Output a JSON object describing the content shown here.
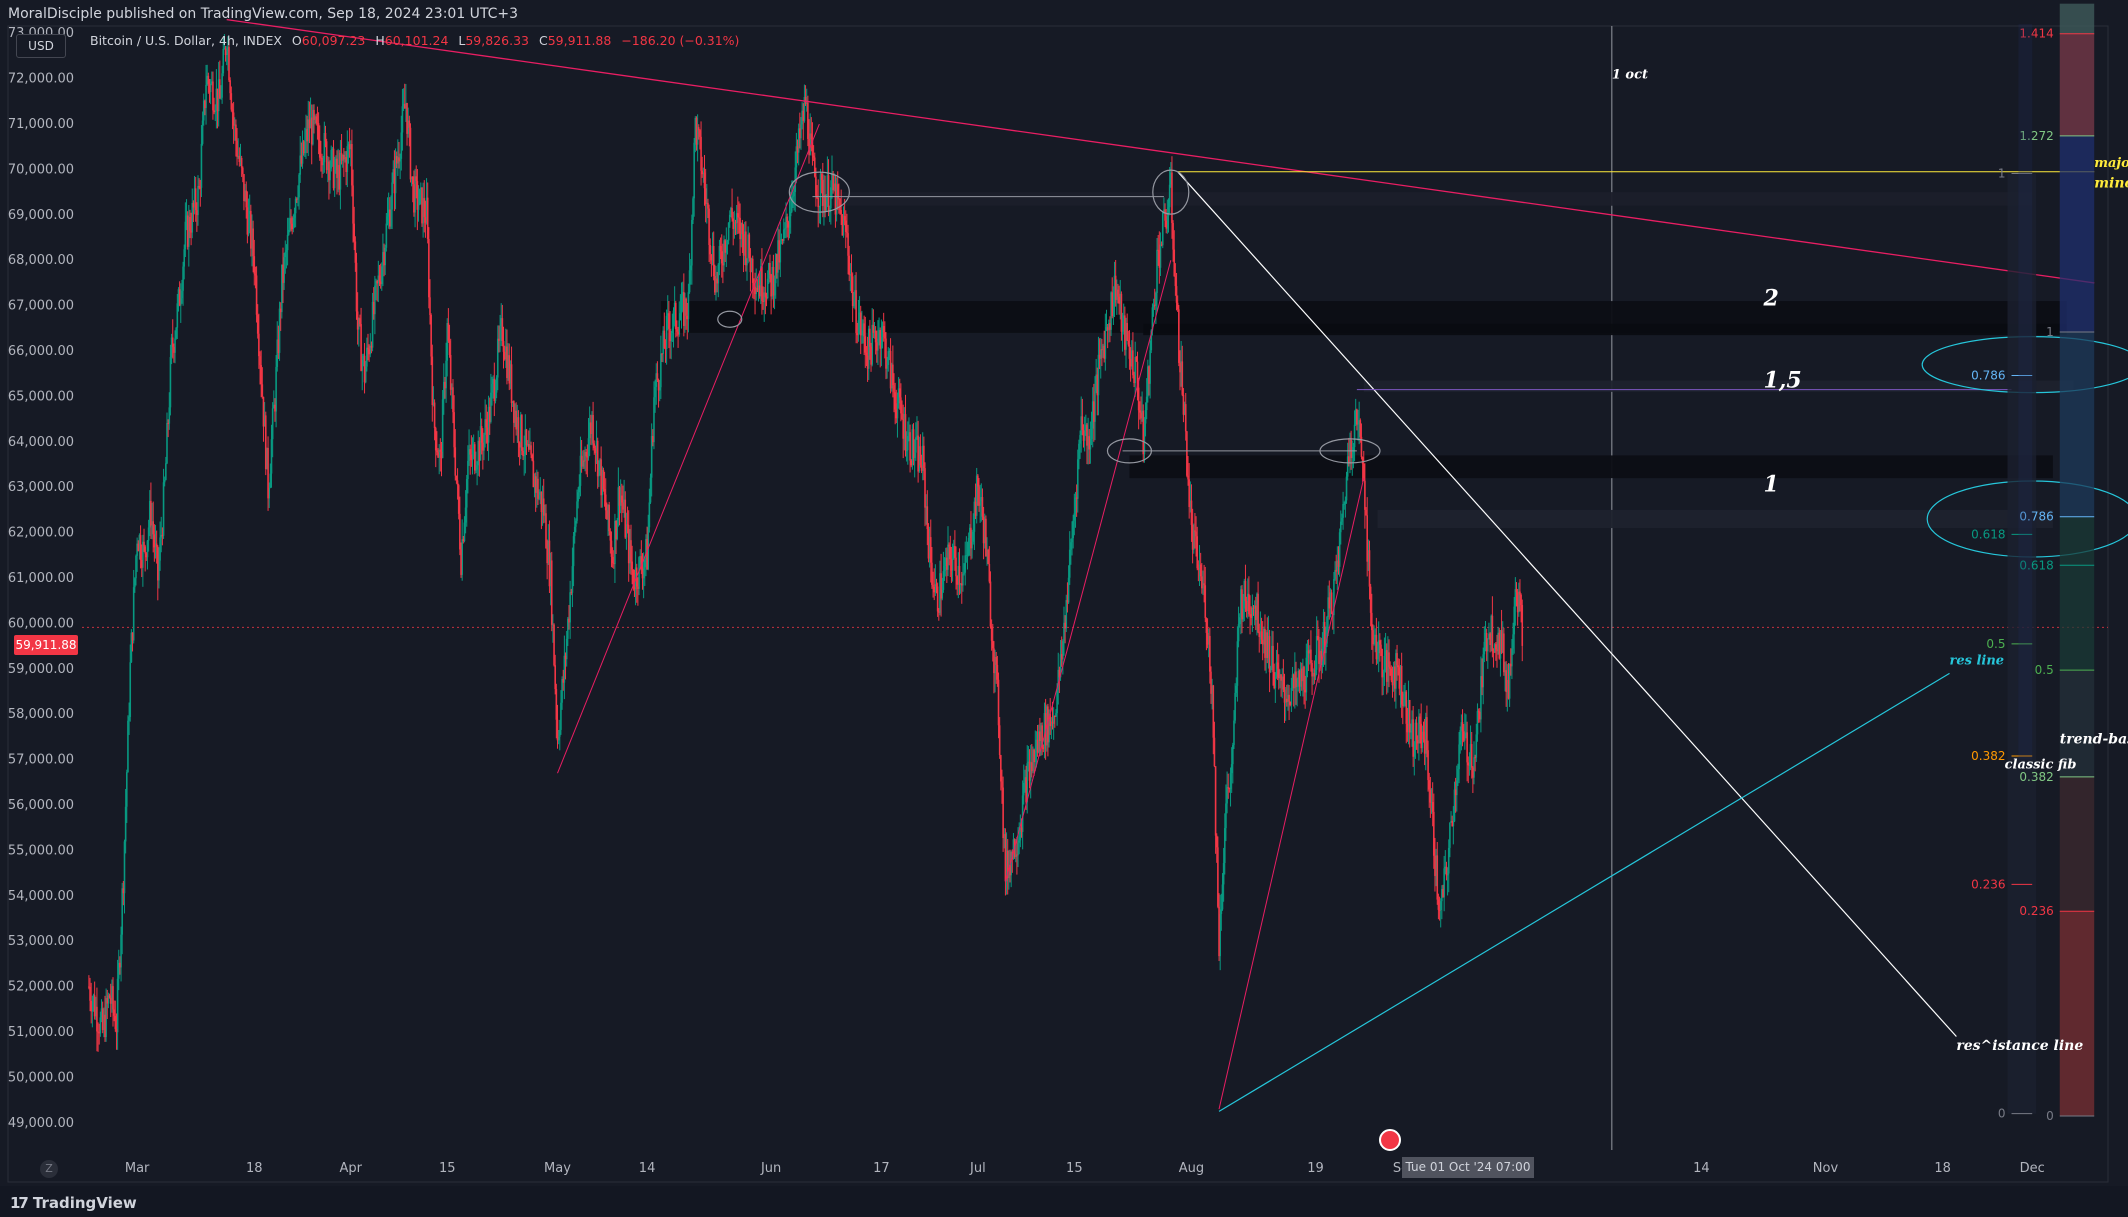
{
  "header": {
    "publisher": "MoralDisciple published on TradingView.com, Sep 18, 2024 23:01 UTC+3"
  },
  "toolbar": {
    "currency_button": "USD"
  },
  "legend": {
    "symbol": "Bitcoin / U.S. Dollar, 4h, INDEX",
    "o_key": "O",
    "o": "60,097.23",
    "h_key": "H",
    "h": "60,101.24",
    "l_key": "L",
    "l": "59,826.33",
    "c_key": "C",
    "c": "59,911.88",
    "change": "−186.20 (−0.31%)"
  },
  "last_price_tag": "59,911.88",
  "crosshair_date": "Tue 01 Oct '24   07:00",
  "footer": {
    "logo": "TradingView",
    "zoom": "Z"
  },
  "colors": {
    "background": "#161a25",
    "up": "#089981",
    "down": "#f23645",
    "trendline": "#e91e63",
    "fib_line": "#ffffff",
    "support_line": "#26c6da",
    "annotation_yellow": "#ffeb3b"
  },
  "chart_data": {
    "type": "candlestick",
    "symbol": "Bitcoin / U.S. Dollar",
    "interval": "4h",
    "last_price": 59911.88,
    "y_ticks": [
      49000,
      50000,
      51000,
      52000,
      53000,
      54000,
      55000,
      56000,
      57000,
      58000,
      59000,
      60000,
      61000,
      62000,
      63000,
      64000,
      65000,
      66000,
      67000,
      68000,
      69000,
      70000,
      71000,
      72000,
      73000
    ],
    "y_tick_labels": [
      "49,000.00",
      "50,000.00",
      "51,000.00",
      "52,000.00",
      "53,000.00",
      "54,000.00",
      "55,000.00",
      "56,000.00",
      "57,000.00",
      "58,000.00",
      "59,000.00",
      "60,000.00",
      "61,000.00",
      "62,000.00",
      "63,000.00",
      "64,000.00",
      "65,000.00",
      "66,000.00",
      "67,000.00",
      "68,000.00",
      "69,000.00",
      "70,000.00",
      "71,000.00",
      "72,000.00",
      "73,000.00"
    ],
    "ylim": [
      48400,
      73600
    ],
    "x_ticks": [
      {
        "date": "2024-03-01",
        "label": "Mar"
      },
      {
        "date": "2024-03-18",
        "label": "18"
      },
      {
        "date": "2024-04-01",
        "label": "Apr"
      },
      {
        "date": "2024-04-15",
        "label": "15"
      },
      {
        "date": "2024-05-01",
        "label": "May"
      },
      {
        "date": "2024-05-14",
        "label": "14"
      },
      {
        "date": "2024-06-01",
        "label": "Jun"
      },
      {
        "date": "2024-06-17",
        "label": "17"
      },
      {
        "date": "2024-07-01",
        "label": "Jul"
      },
      {
        "date": "2024-07-15",
        "label": "15"
      },
      {
        "date": "2024-08-01",
        "label": "Aug"
      },
      {
        "date": "2024-08-19",
        "label": "19"
      },
      {
        "date": "2024-09-01",
        "label": "Sep"
      },
      {
        "date": "2024-09-16",
        "label": "16"
      },
      {
        "date": "2024-10-14",
        "label": "14"
      },
      {
        "date": "2024-11-01",
        "label": "Nov"
      },
      {
        "date": "2024-11-18",
        "label": "18"
      },
      {
        "date": "2024-12-01",
        "label": "Dec"
      }
    ],
    "xlim": [
      "2024-02-22",
      "2024-12-12"
    ],
    "price_path": [
      [
        "2024-02-23",
        52000
      ],
      [
        "2024-02-24",
        51500
      ],
      [
        "2024-02-25",
        51000
      ],
      [
        "2024-02-26",
        51800
      ],
      [
        "2024-02-27",
        51200
      ],
      [
        "2024-02-28",
        54500
      ],
      [
        "2024-02-29",
        59000
      ],
      [
        "2024-03-01",
        62000
      ],
      [
        "2024-03-02",
        61500
      ],
      [
        "2024-03-03",
        62500
      ],
      [
        "2024-03-04",
        61000
      ],
      [
        "2024-03-05",
        63000
      ],
      [
        "2024-03-06",
        66000
      ],
      [
        "2024-03-07",
        67000
      ],
      [
        "2024-03-08",
        68500
      ],
      [
        "2024-03-10",
        69500
      ],
      [
        "2024-03-11",
        72000
      ],
      [
        "2024-03-13",
        71500
      ],
      [
        "2024-03-14",
        73000
      ],
      [
        "2024-03-15",
        71000
      ],
      [
        "2024-03-17",
        69000
      ],
      [
        "2024-03-18",
        68000
      ],
      [
        "2024-03-20",
        63000
      ],
      [
        "2024-03-21",
        65000
      ],
      [
        "2024-03-22",
        67500
      ],
      [
        "2024-03-24",
        69500
      ],
      [
        "2024-03-26",
        71000
      ],
      [
        "2024-03-28",
        70500
      ],
      [
        "2024-03-30",
        69800
      ],
      [
        "2024-04-01",
        70500
      ],
      [
        "2024-04-02",
        66500
      ],
      [
        "2024-04-03",
        65500
      ],
      [
        "2024-04-05",
        67500
      ],
      [
        "2024-04-07",
        69500
      ],
      [
        "2024-04-09",
        71500
      ],
      [
        "2024-04-10",
        69500
      ],
      [
        "2024-04-12",
        69000
      ],
      [
        "2024-04-13",
        64500
      ],
      [
        "2024-04-14",
        63500
      ],
      [
        "2024-04-15",
        66500
      ],
      [
        "2024-04-17",
        61500
      ],
      [
        "2024-04-18",
        63500
      ],
      [
        "2024-04-20",
        64000
      ],
      [
        "2024-04-21",
        64500
      ],
      [
        "2024-04-23",
        66500
      ],
      [
        "2024-04-25",
        64500
      ],
      [
        "2024-04-27",
        63500
      ],
      [
        "2024-04-29",
        62500
      ],
      [
        "2024-04-30",
        61000
      ],
      [
        "2024-05-01",
        57500
      ],
      [
        "2024-05-02",
        59000
      ],
      [
        "2024-05-04",
        63000
      ],
      [
        "2024-05-06",
        64500
      ],
      [
        "2024-05-07",
        63500
      ],
      [
        "2024-05-09",
        61500
      ],
      [
        "2024-05-10",
        63000
      ],
      [
        "2024-05-12",
        61000
      ],
      [
        "2024-05-14",
        61500
      ],
      [
        "2024-05-15",
        65000
      ],
      [
        "2024-05-17",
        66500
      ],
      [
        "2024-05-20",
        67000
      ],
      [
        "2024-05-21",
        71000
      ],
      [
        "2024-05-22",
        70000
      ],
      [
        "2024-05-24",
        67500
      ],
      [
        "2024-05-26",
        69000
      ],
      [
        "2024-05-28",
        68500
      ],
      [
        "2024-05-30",
        67500
      ],
      [
        "2024-06-01",
        67500
      ],
      [
        "2024-06-03",
        68500
      ],
      [
        "2024-06-05",
        70500
      ],
      [
        "2024-06-06",
        71500
      ],
      [
        "2024-06-07",
        70000
      ],
      [
        "2024-06-08",
        69500
      ],
      [
        "2024-06-10",
        69500
      ],
      [
        "2024-06-12",
        68500
      ],
      [
        "2024-06-13",
        67000
      ],
      [
        "2024-06-15",
        66000
      ],
      [
        "2024-06-17",
        66500
      ],
      [
        "2024-06-19",
        65000
      ],
      [
        "2024-06-21",
        64000
      ],
      [
        "2024-06-23",
        63500
      ],
      [
        "2024-06-24",
        61500
      ],
      [
        "2024-06-25",
        60500
      ],
      [
        "2024-06-27",
        61500
      ],
      [
        "2024-06-29",
        61000
      ],
      [
        "2024-07-01",
        63000
      ],
      [
        "2024-07-02",
        62000
      ],
      [
        "2024-07-04",
        58000
      ],
      [
        "2024-07-05",
        54500
      ],
      [
        "2024-07-07",
        55500
      ],
      [
        "2024-07-08",
        56500
      ],
      [
        "2024-07-10",
        57500
      ],
      [
        "2024-07-12",
        58000
      ],
      [
        "2024-07-13",
        59000
      ],
      [
        "2024-07-15",
        62500
      ],
      [
        "2024-07-16",
        64500
      ],
      [
        "2024-07-17",
        64000
      ],
      [
        "2024-07-19",
        66000
      ],
      [
        "2024-07-21",
        67500
      ],
      [
        "2024-07-22",
        66500
      ],
      [
        "2024-07-24",
        65500
      ],
      [
        "2024-07-25",
        64000
      ],
      [
        "2024-07-27",
        68000
      ],
      [
        "2024-07-29",
        69500
      ],
      [
        "2024-07-30",
        66500
      ],
      [
        "2024-07-31",
        64500
      ],
      [
        "2024-08-01",
        62000
      ],
      [
        "2024-08-03",
        60500
      ],
      [
        "2024-08-04",
        58500
      ],
      [
        "2024-08-05",
        53000
      ],
      [
        "2024-08-06",
        56000
      ],
      [
        "2024-08-07",
        57000
      ],
      [
        "2024-08-08",
        60500
      ],
      [
        "2024-08-10",
        60500
      ],
      [
        "2024-08-12",
        59500
      ],
      [
        "2024-08-14",
        58500
      ],
      [
        "2024-08-16",
        58500
      ],
      [
        "2024-08-18",
        59000
      ],
      [
        "2024-08-20",
        59500
      ],
      [
        "2024-08-22",
        61000
      ],
      [
        "2024-08-24",
        64000
      ],
      [
        "2024-08-25",
        64500
      ],
      [
        "2024-08-26",
        63500
      ],
      [
        "2024-08-27",
        60000
      ],
      [
        "2024-08-29",
        59000
      ],
      [
        "2024-08-31",
        59000
      ],
      [
        "2024-09-02",
        57500
      ],
      [
        "2024-09-04",
        57500
      ],
      [
        "2024-09-06",
        53500
      ],
      [
        "2024-09-07",
        54500
      ],
      [
        "2024-09-09",
        57500
      ],
      [
        "2024-09-11",
        57000
      ],
      [
        "2024-09-13",
        60000
      ],
      [
        "2024-09-15",
        59500
      ],
      [
        "2024-09-16",
        58500
      ],
      [
        "2024-09-17",
        61000
      ],
      [
        "2024-09-18",
        59911.88
      ]
    ],
    "y_axis_price_tag": "59,911.88",
    "annotations": {
      "texts": [
        {
          "text": "1 oct",
          "date": "2024-10-01",
          "price": 72000,
          "color": "#ffffff"
        },
        {
          "text": "2",
          "date": "2024-10-23",
          "price": 67000,
          "color": "#ffffff"
        },
        {
          "text": "1,5",
          "date": "2024-10-23",
          "price": 65200,
          "color": "#ffffff"
        },
        {
          "text": "1",
          "date": "2024-10-23",
          "price": 62900,
          "color": "#ffffff"
        },
        {
          "text": "res line",
          "date": "2024-11-19",
          "price": 59100,
          "color": "#26c6da"
        },
        {
          "text": "res^istance line",
          "date": "2024-11-20",
          "price": 50600,
          "color": "#ffffff"
        },
        {
          "text": "classic fib",
          "date": "2024-11-27",
          "price": 56800,
          "color": "#ffffff"
        },
        {
          "text": "trend-based fib",
          "date": "2024-12-05",
          "price": 57350,
          "color": "#ffffff"
        },
        {
          "text": "major sl",
          "date": "2024-12-10",
          "price": 70050,
          "color": "#ffeb3b"
        },
        {
          "text": "minor sl is pending",
          "date": "2024-12-10",
          "price": 69600,
          "color": "#ffeb3b"
        }
      ],
      "classic_fib": [
        {
          "label": "0",
          "price": 49200,
          "color": "#787b86"
        },
        {
          "label": "0.236",
          "price": 54250,
          "color": "#f23645"
        },
        {
          "label": "0.382",
          "price": 57080,
          "color": "#ff9800"
        },
        {
          "label": "0.5",
          "price": 59550,
          "color": "#4caf50"
        },
        {
          "label": "0.618",
          "price": 61960,
          "color": "#089981"
        },
        {
          "label": "0.786",
          "price": 65460,
          "color": "#64b5f6"
        },
        {
          "label": "1",
          "price": 69910,
          "color": "#787b86"
        }
      ],
      "trend_fib": [
        {
          "label": "0",
          "price": 49150,
          "color": "#787b86"
        },
        {
          "label": "0.236",
          "price": 53660,
          "color": "#f23645"
        },
        {
          "label": "0.382",
          "price": 56620,
          "color": "#81c784"
        },
        {
          "label": "0.5",
          "price": 58970,
          "color": "#4caf50"
        },
        {
          "label": "0.618",
          "price": 61280,
          "color": "#089981"
        },
        {
          "label": "0.786",
          "price": 62350,
          "color": "#64b5f6"
        },
        {
          "label": "1",
          "price": 66420,
          "color": "#787b86"
        },
        {
          "label": "1.272",
          "price": 70740,
          "color": "#81c784"
        },
        {
          "label": "1.414",
          "price": 72990,
          "color": "#f23645"
        }
      ]
    },
    "grid": false,
    "legend_position": "top-left"
  }
}
